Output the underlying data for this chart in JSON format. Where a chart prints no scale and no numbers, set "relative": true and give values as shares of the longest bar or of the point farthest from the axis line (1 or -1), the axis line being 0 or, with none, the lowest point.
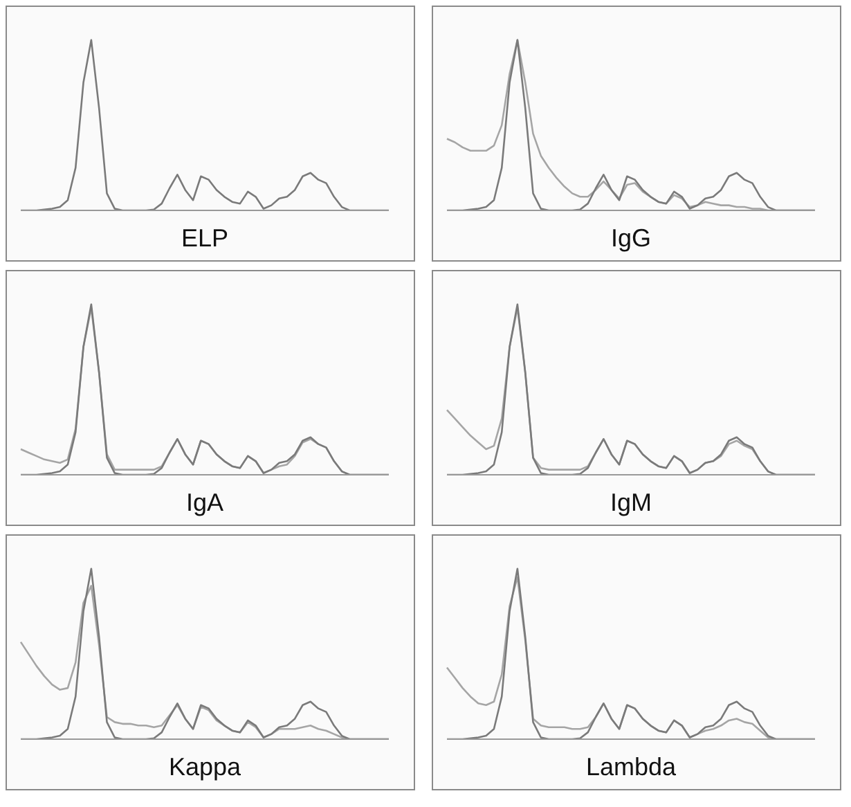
{
  "chart_data": [
    {
      "type": "line",
      "relative": true,
      "xlabel": "ELP",
      "categories": [
        null,
        null,
        null,
        null,
        null,
        null,
        null,
        null,
        null,
        null,
        null,
        null,
        null,
        null,
        null,
        null,
        null,
        null,
        null,
        null,
        null,
        null,
        null,
        null,
        null,
        null,
        null,
        null,
        null,
        null,
        null,
        null,
        null,
        null,
        null,
        null,
        null,
        null,
        null,
        null,
        null,
        null,
        null,
        null,
        null,
        null,
        null,
        null
      ],
      "series": [
        {
          "color": "#7a7a7a",
          "values": [
            0,
            0,
            0,
            0.005,
            0.01,
            0.02,
            0.06,
            0.25,
            0.75,
            1,
            0.6,
            0.1,
            0.01,
            0,
            0,
            0,
            0,
            0.005,
            0.04,
            0.13,
            0.21,
            0.12,
            0.06,
            0.2,
            0.18,
            0.12,
            0.08,
            0.05,
            0.04,
            0.11,
            0.08,
            0.01,
            0.03,
            0.07,
            0.08,
            0.12,
            0.2,
            0.22,
            0.18,
            0.16,
            0.08,
            0.02,
            0,
            0,
            0,
            0,
            0,
            0
          ]
        }
      ]
    },
    {
      "type": "line",
      "relative": true,
      "xlabel": "IgG",
      "categories": [
        null,
        null,
        null,
        null,
        null,
        null,
        null,
        null,
        null,
        null,
        null,
        null,
        null,
        null,
        null,
        null,
        null,
        null,
        null,
        null,
        null,
        null,
        null,
        null,
        null,
        null,
        null,
        null,
        null,
        null,
        null,
        null,
        null,
        null,
        null,
        null,
        null,
        null,
        null,
        null,
        null,
        null,
        null,
        null,
        null,
        null,
        null,
        null
      ],
      "series": [
        {
          "color": "#a5a5a5",
          "values": [
            0.42,
            0.4,
            0.37,
            0.35,
            0.35,
            0.35,
            0.38,
            0.5,
            0.8,
            1,
            0.75,
            0.45,
            0.32,
            0.25,
            0.19,
            0.14,
            0.1,
            0.08,
            0.08,
            0.12,
            0.17,
            0.12,
            0.07,
            0.15,
            0.16,
            0.11,
            0.08,
            0.05,
            0.04,
            0.09,
            0.07,
            0.02,
            0.03,
            0.05,
            0.04,
            0.03,
            0.03,
            0.02,
            0.02,
            0.01,
            0.01,
            0,
            0,
            0,
            0,
            0,
            0,
            0
          ]
        },
        {
          "color": "#7a7a7a",
          "values": [
            0,
            0,
            0,
            0.005,
            0.01,
            0.02,
            0.06,
            0.25,
            0.75,
            1,
            0.6,
            0.1,
            0.01,
            0,
            0,
            0,
            0,
            0.005,
            0.04,
            0.13,
            0.21,
            0.12,
            0.06,
            0.2,
            0.18,
            0.12,
            0.08,
            0.05,
            0.04,
            0.11,
            0.08,
            0.01,
            0.03,
            0.07,
            0.08,
            0.12,
            0.2,
            0.22,
            0.18,
            0.16,
            0.08,
            0.02,
            0,
            0,
            0,
            0,
            0,
            0
          ]
        }
      ]
    },
    {
      "type": "line",
      "relative": true,
      "xlabel": "IgA",
      "categories": [
        null,
        null,
        null,
        null,
        null,
        null,
        null,
        null,
        null,
        null,
        null,
        null,
        null,
        null,
        null,
        null,
        null,
        null,
        null,
        null,
        null,
        null,
        null,
        null,
        null,
        null,
        null,
        null,
        null,
        null,
        null,
        null,
        null,
        null,
        null,
        null,
        null,
        null,
        null,
        null,
        null,
        null,
        null,
        null,
        null,
        null,
        null,
        null
      ],
      "series": [
        {
          "color": "#a5a5a5",
          "values": [
            0.15,
            0.13,
            0.11,
            0.09,
            0.08,
            0.07,
            0.09,
            0.27,
            0.75,
            0.98,
            0.6,
            0.12,
            0.03,
            0.03,
            0.03,
            0.03,
            0.03,
            0.03,
            0.05,
            0.13,
            0.21,
            0.12,
            0.06,
            0.2,
            0.18,
            0.12,
            0.08,
            0.05,
            0.04,
            0.11,
            0.08,
            0.01,
            0.03,
            0.05,
            0.06,
            0.11,
            0.19,
            0.21,
            0.18,
            0.16,
            0.08,
            0.02,
            0,
            0,
            0,
            0,
            0,
            0
          ]
        },
        {
          "color": "#7a7a7a",
          "values": [
            0,
            0,
            0,
            0.005,
            0.01,
            0.02,
            0.06,
            0.25,
            0.75,
            1,
            0.6,
            0.1,
            0.01,
            0,
            0,
            0,
            0,
            0.005,
            0.04,
            0.13,
            0.21,
            0.12,
            0.06,
            0.2,
            0.18,
            0.12,
            0.08,
            0.05,
            0.04,
            0.11,
            0.08,
            0.01,
            0.03,
            0.07,
            0.08,
            0.12,
            0.2,
            0.22,
            0.18,
            0.16,
            0.08,
            0.02,
            0,
            0,
            0,
            0,
            0,
            0
          ]
        }
      ]
    },
    {
      "type": "line",
      "relative": true,
      "xlabel": "IgM",
      "categories": [
        null,
        null,
        null,
        null,
        null,
        null,
        null,
        null,
        null,
        null,
        null,
        null,
        null,
        null,
        null,
        null,
        null,
        null,
        null,
        null,
        null,
        null,
        null,
        null,
        null,
        null,
        null,
        null,
        null,
        null,
        null,
        null,
        null,
        null,
        null,
        null,
        null,
        null,
        null,
        null,
        null,
        null,
        null,
        null,
        null,
        null,
        null,
        null
      ],
      "series": [
        {
          "color": "#a5a5a5",
          "values": [
            0.38,
            0.33,
            0.28,
            0.23,
            0.19,
            0.15,
            0.17,
            0.33,
            0.75,
            0.98,
            0.6,
            0.1,
            0.04,
            0.03,
            0.03,
            0.03,
            0.03,
            0.03,
            0.05,
            0.13,
            0.21,
            0.12,
            0.06,
            0.2,
            0.18,
            0.12,
            0.08,
            0.05,
            0.04,
            0.11,
            0.08,
            0.01,
            0.03,
            0.07,
            0.08,
            0.11,
            0.18,
            0.2,
            0.17,
            0.15,
            0.08,
            0.02,
            0,
            0,
            0,
            0,
            0,
            0
          ]
        },
        {
          "color": "#7a7a7a",
          "values": [
            0,
            0,
            0,
            0.005,
            0.01,
            0.02,
            0.06,
            0.25,
            0.75,
            1,
            0.6,
            0.1,
            0.01,
            0,
            0,
            0,
            0,
            0.005,
            0.04,
            0.13,
            0.21,
            0.12,
            0.06,
            0.2,
            0.18,
            0.12,
            0.08,
            0.05,
            0.04,
            0.11,
            0.08,
            0.01,
            0.03,
            0.07,
            0.08,
            0.12,
            0.2,
            0.22,
            0.18,
            0.16,
            0.08,
            0.02,
            0,
            0,
            0,
            0,
            0,
            0
          ]
        }
      ]
    },
    {
      "type": "line",
      "relative": true,
      "xlabel": "Kappa",
      "categories": [
        null,
        null,
        null,
        null,
        null,
        null,
        null,
        null,
        null,
        null,
        null,
        null,
        null,
        null,
        null,
        null,
        null,
        null,
        null,
        null,
        null,
        null,
        null,
        null,
        null,
        null,
        null,
        null,
        null,
        null,
        null,
        null,
        null,
        null,
        null,
        null,
        null,
        null,
        null,
        null,
        null,
        null,
        null,
        null,
        null,
        null,
        null,
        null
      ],
      "series": [
        {
          "color": "#a5a5a5",
          "values": [
            0.57,
            0.5,
            0.43,
            0.37,
            0.32,
            0.29,
            0.3,
            0.45,
            0.8,
            0.9,
            0.55,
            0.13,
            0.1,
            0.09,
            0.09,
            0.08,
            0.08,
            0.07,
            0.08,
            0.14,
            0.2,
            0.12,
            0.06,
            0.19,
            0.17,
            0.11,
            0.08,
            0.05,
            0.04,
            0.1,
            0.07,
            0.01,
            0.03,
            0.06,
            0.06,
            0.06,
            0.07,
            0.08,
            0.06,
            0.05,
            0.03,
            0.01,
            0,
            0,
            0,
            0,
            0,
            0
          ]
        },
        {
          "color": "#7a7a7a",
          "values": [
            0,
            0,
            0,
            0.005,
            0.01,
            0.02,
            0.06,
            0.25,
            0.75,
            1,
            0.6,
            0.1,
            0.01,
            0,
            0,
            0,
            0,
            0.005,
            0.04,
            0.13,
            0.21,
            0.12,
            0.06,
            0.2,
            0.18,
            0.12,
            0.08,
            0.05,
            0.04,
            0.11,
            0.08,
            0.01,
            0.03,
            0.07,
            0.08,
            0.12,
            0.2,
            0.22,
            0.18,
            0.16,
            0.08,
            0.02,
            0,
            0,
            0,
            0,
            0,
            0
          ]
        }
      ]
    },
    {
      "type": "line",
      "relative": true,
      "xlabel": "Lambda",
      "categories": [
        null,
        null,
        null,
        null,
        null,
        null,
        null,
        null,
        null,
        null,
        null,
        null,
        null,
        null,
        null,
        null,
        null,
        null,
        null,
        null,
        null,
        null,
        null,
        null,
        null,
        null,
        null,
        null,
        null,
        null,
        null,
        null,
        null,
        null,
        null,
        null,
        null,
        null,
        null,
        null,
        null,
        null,
        null,
        null,
        null,
        null,
        null,
        null
      ],
      "series": [
        {
          "color": "#a5a5a5",
          "values": [
            0.42,
            0.36,
            0.3,
            0.25,
            0.21,
            0.2,
            0.22,
            0.38,
            0.78,
            0.95,
            0.58,
            0.12,
            0.08,
            0.07,
            0.07,
            0.07,
            0.06,
            0.06,
            0.07,
            0.13,
            0.21,
            0.12,
            0.06,
            0.2,
            0.18,
            0.12,
            0.08,
            0.05,
            0.04,
            0.11,
            0.08,
            0.01,
            0.03,
            0.05,
            0.06,
            0.08,
            0.11,
            0.12,
            0.1,
            0.09,
            0.05,
            0.01,
            0,
            0,
            0,
            0,
            0,
            0
          ]
        },
        {
          "color": "#7a7a7a",
          "values": [
            0,
            0,
            0,
            0.005,
            0.01,
            0.02,
            0.06,
            0.25,
            0.75,
            1,
            0.6,
            0.1,
            0.01,
            0,
            0,
            0,
            0,
            0.005,
            0.04,
            0.13,
            0.21,
            0.12,
            0.06,
            0.2,
            0.18,
            0.12,
            0.08,
            0.05,
            0.04,
            0.11,
            0.08,
            0.01,
            0.03,
            0.07,
            0.08,
            0.12,
            0.2,
            0.22,
            0.18,
            0.16,
            0.08,
            0.02,
            0,
            0,
            0,
            0,
            0,
            0
          ]
        }
      ]
    }
  ]
}
